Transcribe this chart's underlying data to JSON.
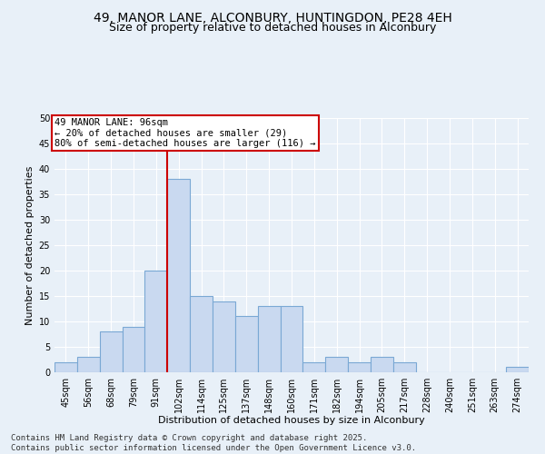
{
  "title1": "49, MANOR LANE, ALCONBURY, HUNTINGDON, PE28 4EH",
  "title2": "Size of property relative to detached houses in Alconbury",
  "xlabel": "Distribution of detached houses by size in Alconbury",
  "ylabel": "Number of detached properties",
  "categories": [
    "45sqm",
    "56sqm",
    "68sqm",
    "79sqm",
    "91sqm",
    "102sqm",
    "114sqm",
    "125sqm",
    "137sqm",
    "148sqm",
    "160sqm",
    "171sqm",
    "182sqm",
    "194sqm",
    "205sqm",
    "217sqm",
    "228sqm",
    "240sqm",
    "251sqm",
    "263sqm",
    "274sqm"
  ],
  "values": [
    2,
    3,
    8,
    9,
    20,
    38,
    15,
    14,
    11,
    13,
    13,
    2,
    3,
    2,
    3,
    2,
    0,
    0,
    0,
    0,
    1
  ],
  "bar_color": "#c9d9f0",
  "bar_edge_color": "#7aa8d4",
  "ref_line_index": 5,
  "ref_line_label": "49 MANOR LANE: 96sqm",
  "annotation_line1": "← 20% of detached houses are smaller (29)",
  "annotation_line2": "80% of semi-detached houses are larger (116) →",
  "annotation_box_color": "#ffffff",
  "annotation_box_edge_color": "#cc0000",
  "ref_line_color": "#cc0000",
  "footer1": "Contains HM Land Registry data © Crown copyright and database right 2025.",
  "footer2": "Contains public sector information licensed under the Open Government Licence v3.0.",
  "ylim": [
    0,
    50
  ],
  "yticks": [
    0,
    5,
    10,
    15,
    20,
    25,
    30,
    35,
    40,
    45,
    50
  ],
  "bg_color": "#e8f0f8",
  "grid_color": "#ffffff",
  "title_fontsize": 10,
  "subtitle_fontsize": 9,
  "axis_label_fontsize": 8,
  "tick_fontsize": 7,
  "footer_fontsize": 6.5,
  "annotation_fontsize": 7.5
}
